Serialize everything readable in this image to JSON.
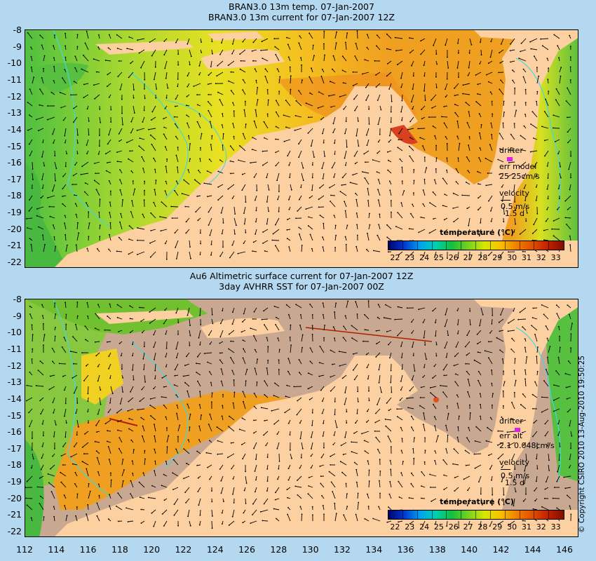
{
  "panel1": {
    "title_line1": "BRAN3.0 13m temp. 07-Jan-2007",
    "title_line2": "BRAN3.0 13m current for 07-Jan-2007 12Z",
    "legend": {
      "drifter_label": "drifter",
      "err_label": "err model",
      "err_value": "25 25cm/s",
      "velocity_label": "velocity",
      "velocity_scale": "0.5 m/s",
      "velocity_time": "1.5 d"
    },
    "colorbar_title": "temperature (°C)"
  },
  "panel2": {
    "title_line1": "Au6 Altimetric surface current for 07-Jan-2007 12Z",
    "title_line2": "3day AVHRR SST for 07-Jan-2007 00Z",
    "legend": {
      "drifter_label": "drifter",
      "err_label": "err alt",
      "err_value": "2.1 0.048cm/s",
      "velocity_label": "velocity",
      "velocity_scale": "0.5 m/s",
      "velocity_time": "1.5 d"
    },
    "colorbar_title": "temperature (°C)"
  },
  "colorbar_ticks": [
    "22",
    "23",
    "24",
    "25",
    "26",
    "27",
    "28",
    "29",
    "30",
    "31",
    "32",
    "33"
  ],
  "lat_ticks": [
    "-8",
    "-9",
    "-10",
    "-11",
    "-12",
    "-13",
    "-14",
    "-15",
    "-16",
    "-17",
    "-18",
    "-19",
    "-20",
    "-21",
    "-22"
  ],
  "lon_ticks": [
    "112",
    "114",
    "116",
    "118",
    "120",
    "122",
    "124",
    "126",
    "128",
    "130",
    "132",
    "134",
    "136",
    "138",
    "140",
    "142",
    "144",
    "146"
  ],
  "copyright": "© Copyright CSIRO 2010   13-Aug-2010 19:50:25",
  "colors": {
    "land": "#fcd0a0",
    "cloud_mask": "#c8a890",
    "ocean_warm": "#f0a020",
    "ocean_mid": "#d8d820",
    "ocean_cool": "#40b030",
    "bathymetry": "#40d8e0",
    "drifter": "#e020e0",
    "background": "#b4d8f0"
  }
}
